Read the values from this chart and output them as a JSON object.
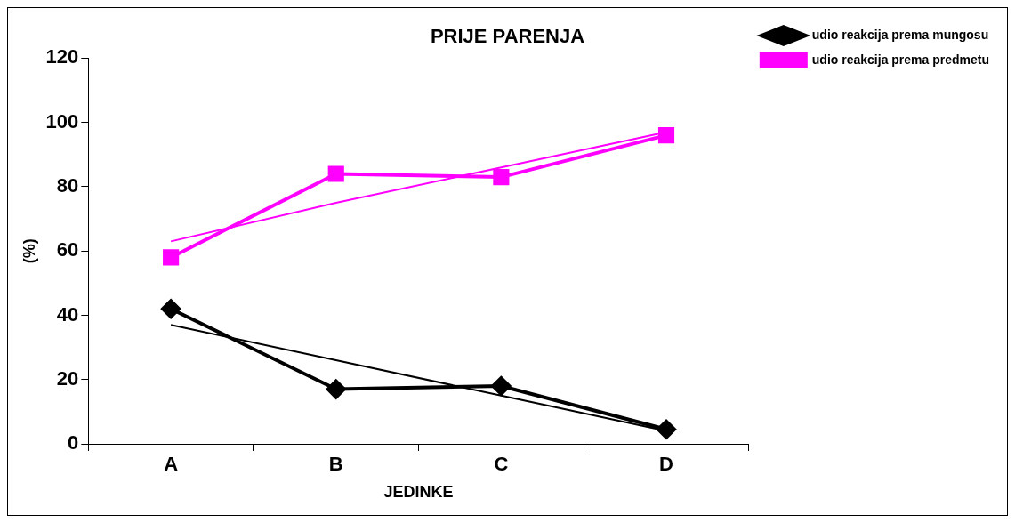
{
  "chart_data": {
    "type": "line",
    "title": "PRIJE PARENJA",
    "xlabel": "JEDINKE",
    "ylabel": "(%)",
    "categories": [
      "A",
      "B",
      "C",
      "D"
    ],
    "series": [
      {
        "name": "udio reakcija prema mungosu",
        "color": "#000000",
        "values": [
          42,
          17,
          18,
          4.5
        ],
        "marker": "diamond"
      },
      {
        "name": "udio reakcija prema predmetu",
        "color": "#ff00ff",
        "values": [
          58,
          84,
          83,
          96
        ],
        "marker": "square"
      },
      {
        "type": "line",
        "color": "#000000",
        "x": [
          "A",
          "B",
          "C",
          "D"
        ],
        "values": [
          37,
          26,
          15,
          4
        ],
        "marker": "none"
      },
      {
        "type": "line",
        "color": "#ff00ff",
        "x": [
          "A",
          "B",
          "C",
          "D"
        ],
        "values": [
          63,
          75,
          86,
          97
        ],
        "marker": "none"
      }
    ],
    "ylim": [
      0,
      120
    ],
    "yticks": [
      0,
      20,
      40,
      60,
      80,
      100,
      120
    ],
    "grid": false,
    "legend": "right"
  }
}
